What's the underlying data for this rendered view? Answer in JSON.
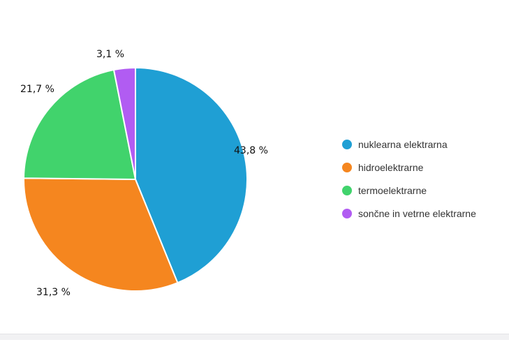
{
  "chart_data": {
    "type": "pie",
    "title": "",
    "legend_position": "right",
    "categories": [
      "nuklearna elektrarna",
      "hidroelektrarne",
      "termoelektrarne",
      "sončne in vetrne elektrarne"
    ],
    "values": [
      43.8,
      31.3,
      21.7,
      3.1
    ],
    "data_labels": [
      "43,8 %",
      "31,3 %",
      "21,7 %",
      "3,1 %"
    ],
    "colors": [
      "#1f9fd4",
      "#f5861f",
      "#41d36c",
      "#b15cf2"
    ]
  }
}
